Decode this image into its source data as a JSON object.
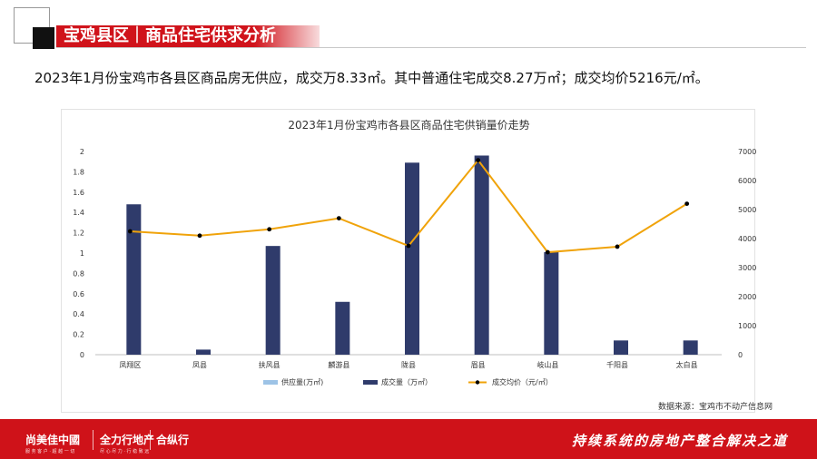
{
  "header": {
    "title": "宝鸡县区｜商品住宅供求分析"
  },
  "summary": "2023年1月份宝鸡市各县区商品房无供应，成交万8.33㎡。其中普通住宅成交8.27万㎡；成交均价5216元/㎡。",
  "chart_data": {
    "type": "bar",
    "title": "2023年1月份宝鸡市各县区商品住宅供销量价走势",
    "categories": [
      "凤翔区",
      "凤县",
      "扶风县",
      "麟游县",
      "陇县",
      "眉县",
      "岐山县",
      "千阳县",
      "太白县"
    ],
    "series": [
      {
        "name": "供应量(万㎡)",
        "type": "bar",
        "axis": "left",
        "values": [
          0,
          0,
          0,
          0,
          0,
          0,
          0,
          0,
          0
        ]
      },
      {
        "name": "成交量（万㎡）",
        "type": "bar",
        "axis": "left",
        "values": [
          1.48,
          0.05,
          1.07,
          0.52,
          1.89,
          1.96,
          1.01,
          0.14,
          0.14
        ]
      },
      {
        "name": "成交均价（元/㎡）",
        "type": "line",
        "axis": "right",
        "values": [
          4250,
          4100,
          4320,
          4700,
          3750,
          6700,
          3530,
          3720,
          5200
        ]
      }
    ],
    "y_left": {
      "min": 0,
      "max": 2,
      "ticks": [
        "0",
        "0.2",
        "0.4",
        "0.6",
        "0.8",
        "1",
        "1.2",
        "1.4",
        "1.6",
        "1.8",
        "2"
      ]
    },
    "y_right": {
      "min": 0,
      "max": 7000,
      "ticks": [
        "0",
        "1000",
        "2000",
        "3000",
        "4000",
        "5000",
        "6000",
        "7000"
      ]
    },
    "grid": false,
    "legend_position": "bottom",
    "colors": {
      "supply": "#9dc3e6",
      "deal": "#2f3b6b",
      "price": "#f0a30a",
      "price_marker": "#000000"
    }
  },
  "source": "数据来源：宝鸡市不动产信息网",
  "footer": {
    "logo1": "尚美佳中國",
    "logo1_sub": "服 务 客 户 · 超 越 一 切",
    "logo2": "全力行地产",
    "logo2_sub": "尽 心 尽 力 · 行 稳 致 远",
    "logo3": "合纵行",
    "slogan": "持续系统的房地产整合解决之道"
  }
}
